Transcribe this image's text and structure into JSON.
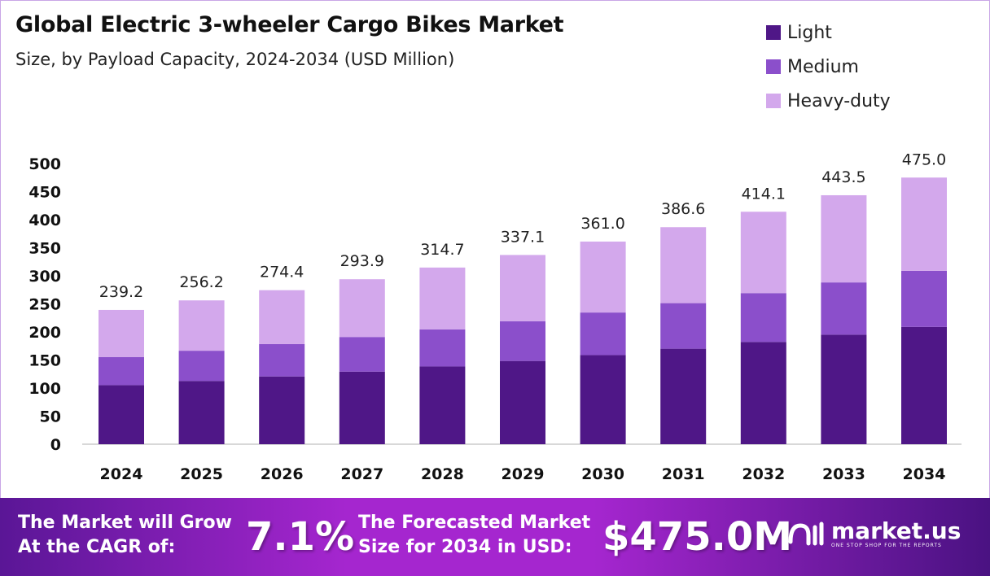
{
  "chart_data": {
    "type": "bar",
    "stacked": true,
    "title": "Global Electric 3-wheeler Cargo Bikes Market",
    "subtitle": "Size, by Payload Capacity, 2024-2034 (USD Million)",
    "categories": [
      "2024",
      "2025",
      "2026",
      "2027",
      "2028",
      "2029",
      "2030",
      "2031",
      "2032",
      "2033",
      "2034"
    ],
    "series": [
      {
        "name": "Light",
        "color": "#4f1787",
        "values": [
          105.2,
          112.7,
          120.7,
          129.3,
          138.5,
          148.3,
          158.8,
          170.1,
          182.2,
          195.1,
          209.0
        ]
      },
      {
        "name": "Medium",
        "color": "#8b4fcb",
        "values": [
          50.2,
          53.8,
          57.6,
          61.7,
          66.1,
          70.8,
          75.8,
          81.2,
          87.0,
          93.1,
          99.8
        ]
      },
      {
        "name": "Heavy-duty",
        "color": "#d3a8ec",
        "values": [
          83.8,
          89.7,
          96.1,
          102.9,
          110.1,
          118.0,
          126.4,
          135.3,
          144.9,
          155.3,
          166.2
        ]
      }
    ],
    "totals": [
      "239.2",
      "256.2",
      "274.4",
      "293.9",
      "314.7",
      "337.1",
      "361.0",
      "386.6",
      "414.1",
      "443.5",
      "475.0"
    ],
    "yticks": [
      0,
      50,
      100,
      150,
      200,
      250,
      300,
      350,
      400,
      450,
      500
    ],
    "ylim": [
      0,
      500
    ],
    "grid": false,
    "legend": "top-right"
  },
  "footer": {
    "cagr_text_1": "The Market will Grow",
    "cagr_text_2": "At the CAGR of:",
    "cagr_value": "7.1%",
    "forecast_text_1": "The Forecasted Market",
    "forecast_text_2": "Size for 2034 in USD:",
    "forecast_value": "$475.0M",
    "brand": "market.us",
    "tagline": "ONE STOP SHOP FOR THE REPORTS"
  }
}
